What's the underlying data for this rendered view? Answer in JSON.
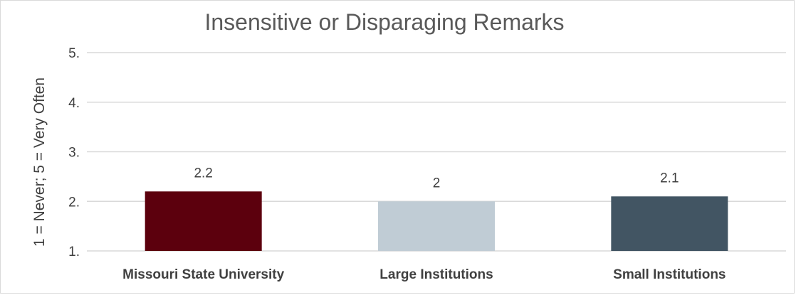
{
  "chart_data": {
    "type": "bar",
    "title": "Insensitive or Disparaging Remarks",
    "ylabel": "1 = Never; 5 = Very Often",
    "xlabel": "",
    "ylim": [
      1,
      5
    ],
    "yticks": [
      1,
      2,
      3,
      4,
      5
    ],
    "ytick_labels": [
      "1.",
      "2.",
      "3.",
      "4.",
      "5."
    ],
    "grid": true,
    "categories": [
      "Missouri State University",
      "Large Institutions",
      "Small Institutions"
    ],
    "values": [
      2.2,
      2,
      2.1
    ],
    "value_labels": [
      "2.2",
      "2",
      "2.1"
    ],
    "colors": [
      "#5c000d",
      "#c0ccd5",
      "#425563"
    ]
  }
}
